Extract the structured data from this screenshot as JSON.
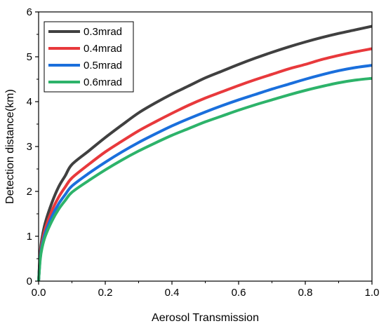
{
  "chart_data": {
    "type": "line",
    "title": "",
    "xlabel": "Aerosol Transmission",
    "ylabel": "Detection distance(km)",
    "xlim": [
      0.0,
      1.0
    ],
    "ylim": [
      0,
      6
    ],
    "x_ticks": [
      0.0,
      0.2,
      0.4,
      0.6,
      0.8,
      1.0
    ],
    "x_tick_labels": [
      "0.0",
      "0.2",
      "0.4",
      "0.6",
      "0.8",
      "1.0"
    ],
    "y_ticks": [
      0,
      1,
      2,
      3,
      4,
      5,
      6
    ],
    "y_tick_labels": [
      "0",
      "1",
      "2",
      "3",
      "4",
      "5",
      "6"
    ],
    "grid": false,
    "legend_position": "top-left",
    "x": [
      0.0,
      0.005,
      0.01,
      0.02,
      0.04,
      0.06,
      0.08,
      0.1,
      0.15,
      0.2,
      0.25,
      0.3,
      0.35,
      0.4,
      0.45,
      0.5,
      0.55,
      0.6,
      0.65,
      0.7,
      0.75,
      0.8,
      0.85,
      0.9,
      0.95,
      1.0
    ],
    "series": [
      {
        "name": "0.3mrad",
        "color": "#404040",
        "values": [
          0.0,
          0.65,
          0.95,
          1.3,
          1.75,
          2.1,
          2.35,
          2.6,
          2.9,
          3.2,
          3.48,
          3.75,
          3.97,
          4.17,
          4.35,
          4.53,
          4.68,
          4.83,
          4.97,
          5.1,
          5.22,
          5.33,
          5.43,
          5.52,
          5.6,
          5.68
        ]
      },
      {
        "name": "0.4mrad",
        "color": "#e8393c",
        "values": [
          0.0,
          0.58,
          0.85,
          1.17,
          1.57,
          1.87,
          2.1,
          2.3,
          2.6,
          2.88,
          3.12,
          3.35,
          3.55,
          3.74,
          3.92,
          4.08,
          4.22,
          4.36,
          4.49,
          4.61,
          4.73,
          4.83,
          4.94,
          5.03,
          5.11,
          5.18
        ]
      },
      {
        "name": "0.5mrad",
        "color": "#1a6fdc",
        "values": [
          0.0,
          0.53,
          0.78,
          1.07,
          1.44,
          1.72,
          1.93,
          2.12,
          2.4,
          2.65,
          2.88,
          3.09,
          3.28,
          3.46,
          3.62,
          3.77,
          3.91,
          4.04,
          4.16,
          4.28,
          4.39,
          4.5,
          4.6,
          4.69,
          4.76,
          4.81
        ]
      },
      {
        "name": "0.6mrad",
        "color": "#2db36a",
        "values": [
          0.0,
          0.49,
          0.73,
          1.0,
          1.34,
          1.6,
          1.8,
          1.98,
          2.24,
          2.48,
          2.7,
          2.9,
          3.08,
          3.25,
          3.4,
          3.55,
          3.68,
          3.81,
          3.93,
          4.04,
          4.15,
          4.25,
          4.34,
          4.42,
          4.48,
          4.52
        ]
      }
    ]
  }
}
